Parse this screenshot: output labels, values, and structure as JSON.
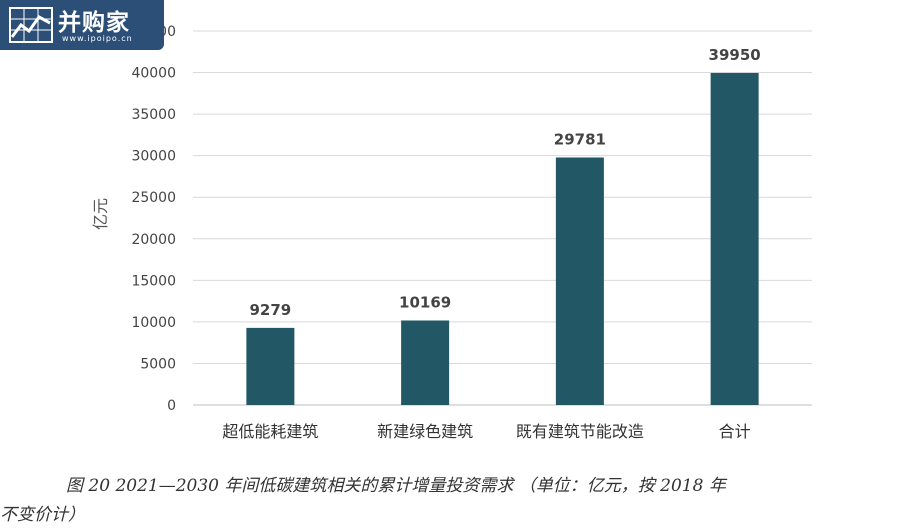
{
  "logo": {
    "name": "并购家",
    "url": "www.ipoipo.cn"
  },
  "caption": {
    "line1": "图 20 2021—2030 年间低碳建筑相关的累计增量投资需求 （单位：亿元，按 2018 年",
    "line2": "不变价计）"
  },
  "chart_data": {
    "type": "bar",
    "categories": [
      "超低能耗建筑",
      "新建绿色建筑",
      "既有建筑节能改造",
      "合计"
    ],
    "values": [
      9279,
      10169,
      29781,
      39950
    ],
    "data_labels": [
      "9279",
      "10169",
      "29781",
      "39950"
    ],
    "ylabel": "亿元",
    "xlabel": "",
    "ylim": [
      0,
      45000
    ],
    "yticks": [
      0,
      5000,
      10000,
      15000,
      20000,
      25000,
      30000,
      35000,
      40000,
      45000
    ],
    "ytick_labels": [
      "0",
      "5000",
      "10000",
      "15000",
      "20000",
      "25000",
      "30000",
      "35000",
      "40000",
      "45000"
    ],
    "bar_color": "#225866",
    "grid": true,
    "legend": "none"
  }
}
